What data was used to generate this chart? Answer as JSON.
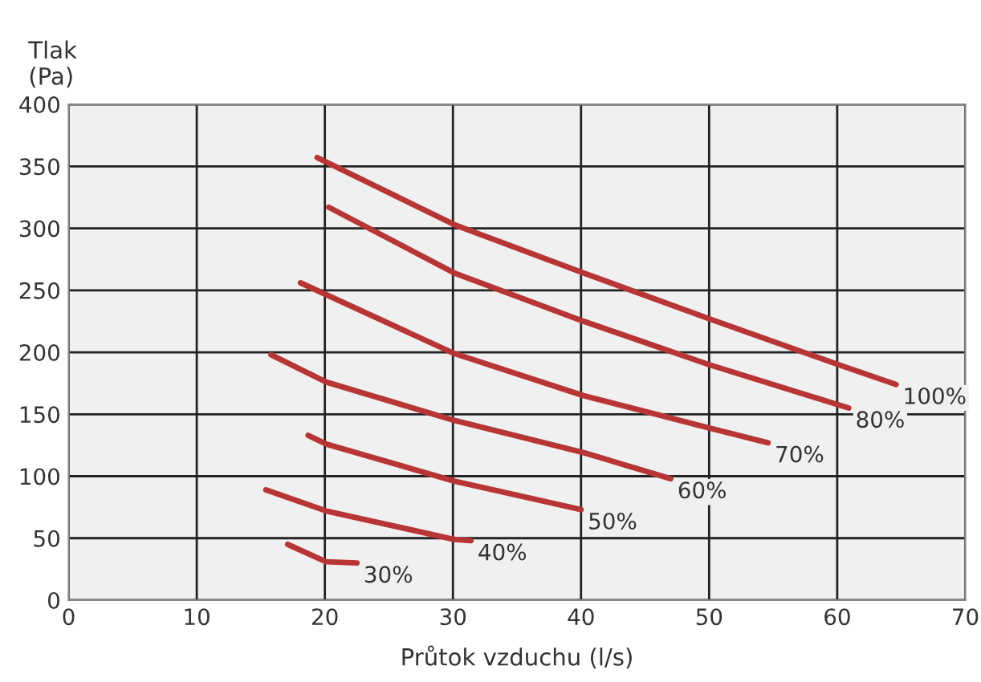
{
  "chart_data": {
    "type": "line",
    "xlabel": "Průtok vzduchu (l/s)",
    "ylabel": "Tlak\n(Pa)",
    "xlim": [
      0,
      70
    ],
    "xticks": [
      0,
      10,
      20,
      30,
      40,
      50,
      60,
      70
    ],
    "ylim": [
      0,
      400
    ],
    "yticks": [
      0,
      50,
      100,
      150,
      200,
      250,
      300,
      350,
      400
    ],
    "grid": true,
    "legend": false,
    "marker": "none",
    "line_style": "solid",
    "series": [
      {
        "name": "100%",
        "color": "#b83535",
        "x": [
          19.4,
          30.1,
          40.2,
          50,
          60.1,
          64.6
        ],
        "values": [
          357,
          303,
          264,
          227,
          190,
          174
        ]
      },
      {
        "name": "80%",
        "color": "#b83535",
        "x": [
          20.3,
          30.1,
          40.2,
          50,
          60.9
        ],
        "values": [
          317,
          264,
          225,
          190,
          155
        ]
      },
      {
        "name": "70%",
        "color": "#b83535",
        "x": [
          18.1,
          30.1,
          40.2,
          50,
          54.6
        ],
        "values": [
          256,
          199,
          165,
          139,
          127
        ]
      },
      {
        "name": "60%",
        "color": "#b83535",
        "x": [
          15.8,
          20.1,
          30.1,
          40.2,
          47
        ],
        "values": [
          198,
          176,
          145,
          119,
          98
        ]
      },
      {
        "name": "50%",
        "color": "#b83535",
        "x": [
          18.7,
          20.1,
          30.1,
          40
        ],
        "values": [
          133,
          126,
          96,
          73
        ]
      },
      {
        "name": "40%",
        "color": "#b83535",
        "x": [
          15.4,
          20.1,
          30.1,
          31.4
        ],
        "values": [
          89,
          72,
          49,
          48
        ]
      },
      {
        "name": "30%",
        "color": "#b83535",
        "x": [
          17.1,
          20.1,
          22.5
        ],
        "values": [
          45,
          31,
          30
        ]
      }
    ]
  }
}
